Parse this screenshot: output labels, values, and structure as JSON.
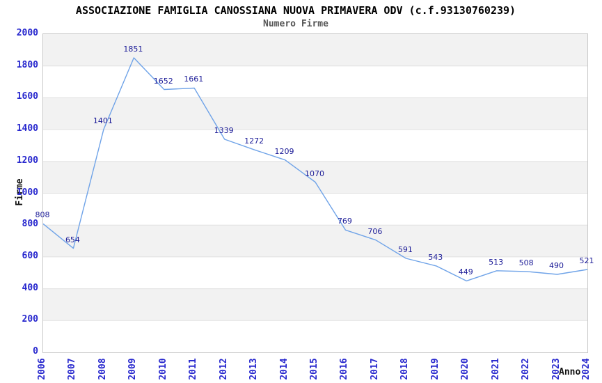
{
  "chart_data": {
    "type": "line",
    "title": "ASSOCIAZIONE FAMIGLIA CANOSSIANA NUOVA PRIMAVERA ODV (c.f.93130760239)",
    "subtitle": "Numero Firme",
    "xlabel": "Anno",
    "ylabel": "Firme",
    "categories": [
      2006,
      2007,
      2008,
      2009,
      2010,
      2011,
      2012,
      2013,
      2014,
      2015,
      2016,
      2017,
      2018,
      2019,
      2020,
      2021,
      2022,
      2023,
      2024
    ],
    "values": [
      808,
      654,
      1401,
      1851,
      1652,
      1661,
      1339,
      1272,
      1209,
      1070,
      769,
      706,
      591,
      543,
      449,
      513,
      508,
      490,
      521
    ],
    "ylim": [
      0,
      2000
    ],
    "ytick_step": 200,
    "grid": "horizontal-only",
    "band_fill": "alternating-gray-from-top",
    "legend": "none",
    "data_labels": "above-points",
    "colors": {
      "line": "#6fa3e8",
      "data_label": "#1b1b97",
      "tick_label": "#2828ce",
      "band": "#f2f2f2",
      "gridline": "#e0e0e0",
      "plot_border": "#c9c9c9",
      "title": "#000000",
      "subtitle": "#555555"
    }
  }
}
